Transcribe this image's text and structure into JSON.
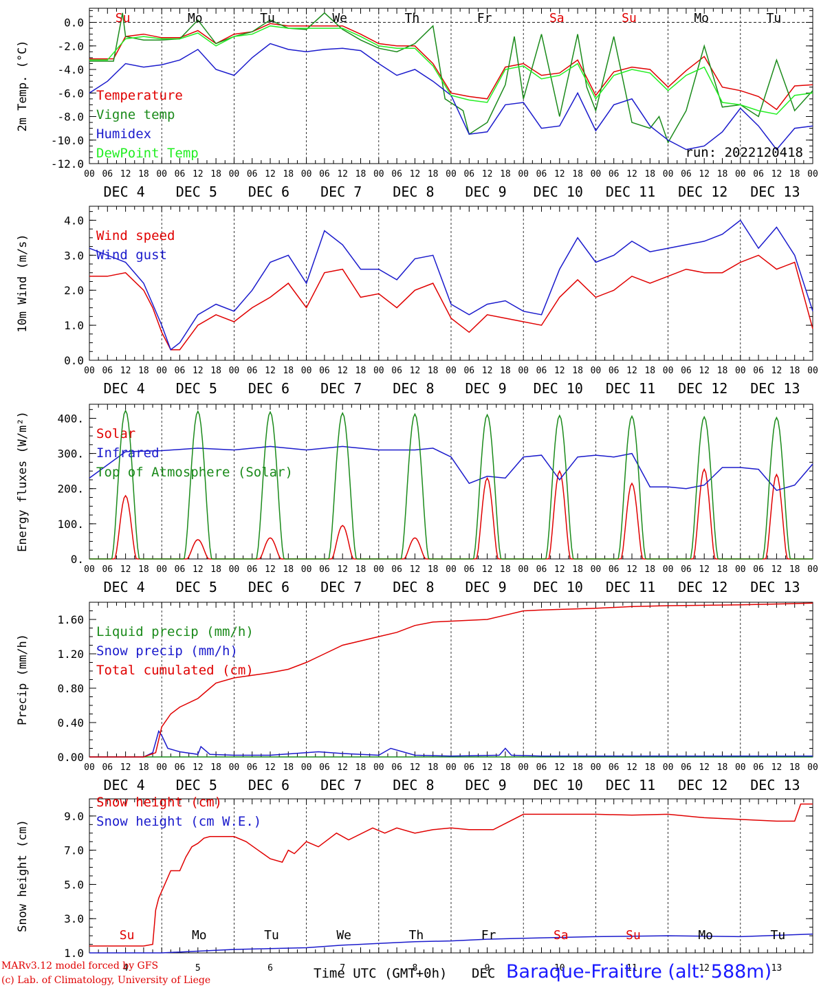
{
  "run_label": "run: 2022120418",
  "footer": {
    "credit_line1": "MARv3.12 model forced by GFS",
    "credit_line2": "(c) Lab. of Climatology, University of Liege",
    "x_title": "Time UTC (GMT+0h)",
    "x_unit": "DEC",
    "station": "Baraque-Fraiture (alt. 588m)"
  },
  "colors": {
    "red": "#e00000",
    "green": "#1a8a1a",
    "blue": "#1a1acc",
    "lightgreen": "#22ee22",
    "black": "#000000"
  },
  "hour_labels": [
    "00",
    "06",
    "12",
    "18"
  ],
  "last_hour_label": "00",
  "date_labels": [
    "DEC  4",
    "DEC  5",
    "DEC  6",
    "DEC  7",
    "DEC  8",
    "DEC  9",
    "DEC 10",
    "DEC 11",
    "DEC 12",
    "DEC 13"
  ],
  "weekdays": [
    {
      "label": "Su",
      "color": "red"
    },
    {
      "label": "Mo",
      "color": "black"
    },
    {
      "label": "Tu",
      "color": "black"
    },
    {
      "label": "We",
      "color": "black"
    },
    {
      "label": "Th",
      "color": "black"
    },
    {
      "label": "Fr",
      "color": "black"
    },
    {
      "label": "Sa",
      "color": "red"
    },
    {
      "label": "Su",
      "color": "red"
    },
    {
      "label": "Mo",
      "color": "black"
    },
    {
      "label": "Tu",
      "color": "black"
    }
  ],
  "bottom_day_numbers": [
    "4",
    "5",
    "6",
    "7",
    "8",
    "9",
    "10",
    "11",
    "12",
    "13"
  ],
  "chart_data": [
    {
      "type": "line",
      "ylabel": "2m Temp. (°C)",
      "ylim": [
        -12,
        1.2
      ],
      "yticks": [
        0,
        -2,
        -4,
        -6,
        -8,
        -10,
        -12
      ],
      "ytick_labels": [
        "0.0",
        "-2.0",
        "-4.0",
        "-6.0",
        "-8.0",
        "-10.0",
        "-12.0"
      ],
      "xlim_hours": [
        0,
        240
      ],
      "zero_line": true,
      "series": [
        {
          "name": "Temperature",
          "color": "red",
          "x": [
            0,
            8,
            12,
            18,
            24,
            30,
            36,
            42,
            48,
            54,
            60,
            66,
            72,
            78,
            84,
            90,
            96,
            102,
            108,
            114,
            120,
            126,
            132,
            138,
            144,
            150,
            156,
            162,
            168,
            174,
            180,
            186,
            192,
            198,
            204,
            210,
            216,
            222,
            228,
            234,
            240
          ],
          "y": [
            -3.1,
            -3.1,
            -1.2,
            -1.0,
            -1.3,
            -1.3,
            -0.7,
            -1.8,
            -1.0,
            -0.8,
            -0.1,
            -0.3,
            -0.3,
            -0.3,
            -0.3,
            -1.0,
            -1.8,
            -2.0,
            -2.0,
            -3.5,
            -6.0,
            -6.3,
            -6.5,
            -3.8,
            -3.5,
            -4.5,
            -4.3,
            -3.2,
            -6.2,
            -4.2,
            -3.8,
            -4.0,
            -5.5,
            -4.1,
            -2.9,
            -5.5,
            -5.8,
            -6.3,
            -7.4,
            -5.4,
            -5.3
          ]
        },
        {
          "name": "Vigne temp",
          "color": "green",
          "x": [
            0,
            8,
            11,
            12,
            18,
            24,
            30,
            36,
            42,
            48,
            54,
            60,
            66,
            72,
            78,
            84,
            90,
            96,
            102,
            108,
            114,
            118,
            124,
            126,
            132,
            138,
            141,
            144,
            150,
            156,
            162,
            165,
            168,
            174,
            180,
            186,
            189,
            192,
            198,
            204,
            210,
            216,
            222,
            228,
            234,
            240
          ],
          "y": [
            -3.3,
            -3.3,
            0.8,
            -1.2,
            -1.5,
            -1.5,
            -1.4,
            0.2,
            -1.8,
            -1.2,
            -0.8,
            0.2,
            -0.5,
            -0.6,
            0.8,
            -0.6,
            -1.5,
            -2.2,
            -2.5,
            -1.8,
            -0.3,
            -6.5,
            -7.5,
            -9.5,
            -8.5,
            -5.3,
            -1.2,
            -6.5,
            -1.0,
            -8.0,
            -1.0,
            -5.5,
            -7.5,
            -1.2,
            -8.5,
            -9.0,
            -8.0,
            -10.2,
            -7.5,
            -2.0,
            -7.2,
            -7.0,
            -8.0,
            -3.2,
            -7.5,
            -5.8
          ]
        },
        {
          "name": "Humidex",
          "color": "blue",
          "x": [
            0,
            6,
            12,
            18,
            24,
            30,
            36,
            42,
            48,
            54,
            60,
            66,
            72,
            78,
            84,
            90,
            96,
            102,
            108,
            114,
            120,
            126,
            132,
            138,
            144,
            150,
            156,
            162,
            168,
            174,
            180,
            186,
            192,
            198,
            204,
            210,
            216,
            222,
            228,
            234,
            240
          ],
          "y": [
            -6.0,
            -5.0,
            -3.5,
            -3.8,
            -3.6,
            -3.2,
            -2.3,
            -4.0,
            -4.5,
            -3.0,
            -1.8,
            -2.3,
            -2.5,
            -2.3,
            -2.2,
            -2.4,
            -3.5,
            -4.5,
            -4.0,
            -5.0,
            -6.2,
            -9.5,
            -9.3,
            -7.0,
            -6.8,
            -9.0,
            -8.8,
            -6.0,
            -9.2,
            -7.0,
            -6.5,
            -8.8,
            -10.0,
            -10.8,
            -10.5,
            -9.3,
            -7.3,
            -8.8,
            -10.8,
            -9.0,
            -8.8
          ]
        },
        {
          "name": "DewPoint Temp",
          "color": "lightgreen",
          "x": [
            0,
            6,
            12,
            18,
            24,
            30,
            36,
            42,
            48,
            54,
            60,
            66,
            72,
            78,
            84,
            90,
            96,
            102,
            108,
            114,
            120,
            126,
            132,
            138,
            144,
            150,
            156,
            162,
            168,
            174,
            180,
            186,
            192,
            198,
            204,
            210,
            216,
            222,
            228,
            234,
            240
          ],
          "y": [
            -3.2,
            -3.2,
            -1.4,
            -1.2,
            -1.4,
            -1.4,
            -0.9,
            -2.0,
            -1.2,
            -1.0,
            -0.3,
            -0.5,
            -0.5,
            -0.5,
            -0.5,
            -1.2,
            -2.0,
            -2.2,
            -2.2,
            -3.7,
            -6.2,
            -6.6,
            -6.8,
            -4.0,
            -3.7,
            -4.8,
            -4.5,
            -3.5,
            -6.5,
            -4.5,
            -4.0,
            -4.3,
            -5.8,
            -4.5,
            -3.8,
            -6.8,
            -7.0,
            -7.5,
            -7.8,
            -6.2,
            -6.0
          ]
        }
      ]
    },
    {
      "type": "line",
      "ylabel": "10m Wind (m/s)",
      "ylim": [
        0,
        4.4
      ],
      "yticks": [
        0,
        1,
        2,
        3,
        4
      ],
      "ytick_labels": [
        "0.0",
        "1.0",
        "2.0",
        "3.0",
        "4.0"
      ],
      "xlim_hours": [
        0,
        240
      ],
      "series": [
        {
          "name": "Wind speed",
          "color": "red",
          "x": [
            0,
            6,
            12,
            18,
            21,
            24,
            27,
            30,
            36,
            42,
            48,
            54,
            60,
            66,
            72,
            78,
            84,
            90,
            96,
            102,
            108,
            114,
            120,
            126,
            132,
            138,
            144,
            150,
            156,
            162,
            168,
            174,
            180,
            186,
            192,
            198,
            204,
            210,
            216,
            222,
            228,
            234,
            240
          ],
          "y": [
            2.4,
            2.4,
            2.5,
            2.0,
            1.5,
            0.8,
            0.3,
            0.3,
            1.0,
            1.3,
            1.1,
            1.5,
            1.8,
            2.2,
            1.5,
            2.5,
            2.6,
            1.8,
            1.9,
            1.5,
            2.0,
            2.2,
            1.2,
            0.8,
            1.3,
            1.2,
            1.1,
            1.0,
            1.8,
            2.3,
            1.8,
            2.0,
            2.4,
            2.2,
            2.4,
            2.6,
            2.5,
            2.5,
            2.8,
            3.0,
            2.6,
            2.8,
            0.9
          ]
        },
        {
          "name": "Wind gust",
          "color": "blue",
          "x": [
            0,
            6,
            12,
            18,
            21,
            24,
            27,
            30,
            36,
            42,
            48,
            54,
            60,
            66,
            72,
            78,
            84,
            90,
            96,
            102,
            108,
            114,
            120,
            126,
            132,
            138,
            144,
            150,
            156,
            162,
            168,
            174,
            180,
            186,
            192,
            198,
            204,
            210,
            216,
            222,
            228,
            234,
            240
          ],
          "y": [
            3.2,
            3.0,
            2.8,
            2.2,
            1.6,
            1.0,
            0.3,
            0.5,
            1.3,
            1.6,
            1.4,
            2.0,
            2.8,
            3.0,
            2.2,
            3.7,
            3.3,
            2.6,
            2.6,
            2.3,
            2.9,
            3.0,
            1.6,
            1.3,
            1.6,
            1.7,
            1.4,
            1.3,
            2.6,
            3.5,
            2.8,
            3.0,
            3.4,
            3.1,
            3.2,
            3.3,
            3.4,
            3.6,
            4.0,
            3.2,
            3.8,
            3.0,
            1.4
          ]
        }
      ]
    },
    {
      "type": "line",
      "ylabel": "Energy fluxes (W/m²)",
      "ylim": [
        0,
        440
      ],
      "yticks": [
        0,
        100,
        200,
        300,
        400
      ],
      "ytick_labels": [
        "0.",
        "100.",
        "200.",
        "300.",
        "400."
      ],
      "xlim_hours": [
        0,
        240
      ],
      "series": [
        {
          "name": "Solar",
          "color": "red",
          "daily_peaks": [
            180,
            55,
            60,
            95,
            60,
            230,
            250,
            215,
            255,
            240
          ]
        },
        {
          "name": "Infrared",
          "color": "blue",
          "x": [
            0,
            12,
            24,
            36,
            48,
            60,
            72,
            84,
            96,
            108,
            114,
            120,
            126,
            132,
            138,
            144,
            150,
            156,
            162,
            168,
            174,
            180,
            186,
            192,
            198,
            204,
            210,
            216,
            222,
            228,
            234,
            240
          ],
          "y": [
            230,
            305,
            308,
            315,
            310,
            320,
            310,
            320,
            310,
            310,
            315,
            290,
            215,
            235,
            230,
            290,
            295,
            225,
            290,
            295,
            290,
            300,
            205,
            205,
            200,
            210,
            260,
            260,
            255,
            195,
            210,
            270
          ]
        },
        {
          "name": "Top of Atmosphere (Solar)",
          "color": "green",
          "daily_peaks": [
            422,
            420,
            418,
            415,
            412,
            410,
            408,
            406,
            404,
            402
          ]
        }
      ]
    },
    {
      "type": "line",
      "ylabel": "Precip (mm/h)",
      "ylim": [
        0,
        1.8
      ],
      "yticks": [
        0,
        0.4,
        0.8,
        1.2,
        1.6
      ],
      "ytick_labels": [
        "0.00",
        "0.40",
        "0.80",
        "1.20",
        "1.60"
      ],
      "xlim_hours": [
        0,
        240
      ],
      "series": [
        {
          "name": "Liquid precip (mm/h)",
          "color": "green",
          "x": [
            0,
            240
          ],
          "y": [
            0,
            0
          ]
        },
        {
          "name": "Snow precip (mm/h)",
          "color": "blue",
          "x": [
            0,
            18,
            21,
            23,
            24,
            26,
            30,
            36,
            37,
            40,
            48,
            60,
            72,
            76,
            84,
            96,
            100,
            108,
            120,
            136,
            138,
            140,
            150,
            168,
            192,
            216,
            240
          ],
          "y": [
            0,
            0,
            0.05,
            0.3,
            0.25,
            0.1,
            0.06,
            0.03,
            0.12,
            0.03,
            0.02,
            0.02,
            0.05,
            0.06,
            0.04,
            0.02,
            0.1,
            0.02,
            0.01,
            0.02,
            0.1,
            0.02,
            0.01,
            0.01,
            0.01,
            0.01,
            0.01
          ]
        },
        {
          "name": "Total cumulated (cm)",
          "color": "red",
          "x": [
            0,
            18,
            22,
            24,
            27,
            30,
            36,
            40,
            42,
            48,
            54,
            60,
            66,
            72,
            78,
            84,
            96,
            102,
            108,
            114,
            120,
            126,
            132,
            138,
            144,
            150,
            168,
            180,
            192,
            216,
            240
          ],
          "y": [
            0,
            0,
            0.05,
            0.35,
            0.5,
            0.58,
            0.68,
            0.8,
            0.86,
            0.92,
            0.95,
            0.98,
            1.02,
            1.1,
            1.2,
            1.3,
            1.4,
            1.45,
            1.53,
            1.57,
            1.58,
            1.59,
            1.6,
            1.65,
            1.7,
            1.71,
            1.73,
            1.75,
            1.76,
            1.77,
            1.79
          ]
        }
      ]
    },
    {
      "type": "line",
      "ylabel": "Snow height (cm)",
      "ylim": [
        1.0,
        10.0
      ],
      "yticks": [
        1,
        3,
        5,
        7,
        9
      ],
      "ytick_labels": [
        "1.0",
        "3.0",
        "5.0",
        "7.0",
        "9.0"
      ],
      "xlim_hours": [
        0,
        240
      ],
      "series": [
        {
          "name": "Snow height (cm)",
          "color": "red",
          "x": [
            0,
            18,
            21,
            22,
            23,
            25,
            27,
            30,
            32,
            34,
            36,
            38,
            40,
            44,
            48,
            52,
            56,
            60,
            64,
            66,
            68,
            72,
            76,
            82,
            86,
            94,
            98,
            102,
            108,
            114,
            120,
            126,
            134,
            144,
            150,
            168,
            180,
            192,
            204,
            216,
            228,
            234,
            236,
            240
          ],
          "y": [
            1.4,
            1.4,
            1.5,
            3.5,
            4.2,
            5.0,
            5.8,
            5.8,
            6.6,
            7.2,
            7.4,
            7.7,
            7.8,
            7.8,
            7.8,
            7.5,
            7.0,
            6.5,
            6.3,
            7.0,
            6.8,
            7.5,
            7.2,
            8.0,
            7.6,
            8.3,
            8.0,
            8.3,
            8.0,
            8.2,
            8.3,
            8.2,
            8.2,
            9.1,
            9.1,
            9.1,
            9.05,
            9.1,
            8.9,
            8.8,
            8.7,
            8.7,
            9.7,
            9.7
          ]
        },
        {
          "name": "Snow height (cm W.E.)",
          "color": "blue",
          "x": [
            0,
            24,
            36,
            48,
            60,
            72,
            84,
            96,
            108,
            120,
            132,
            144,
            168,
            192,
            216,
            240
          ],
          "y": [
            1.0,
            1.0,
            1.1,
            1.2,
            1.25,
            1.3,
            1.45,
            1.55,
            1.65,
            1.7,
            1.8,
            1.85,
            1.95,
            2.0,
            1.95,
            2.1
          ]
        }
      ]
    }
  ]
}
